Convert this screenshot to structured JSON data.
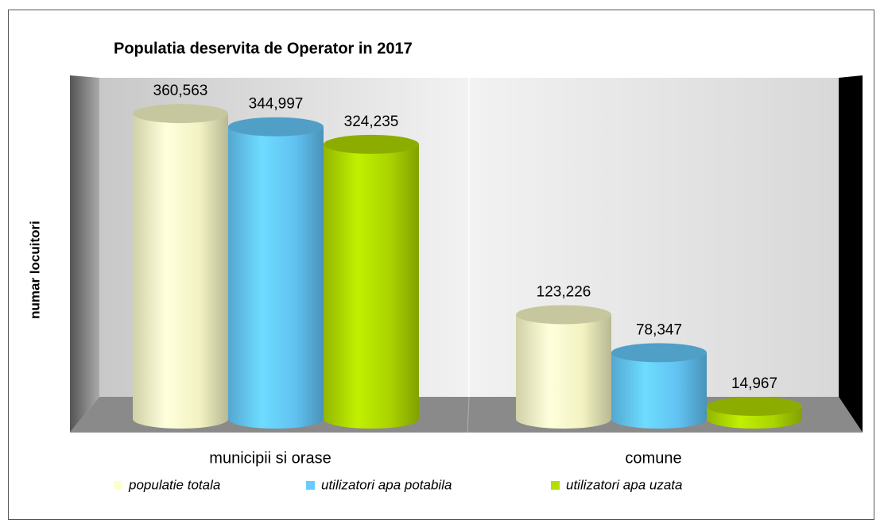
{
  "chart_data": {
    "type": "bar3d",
    "title": "Populatia deservita de Operator in 2017",
    "y_label": "numar locuitori",
    "categories": [
      "municipii si orase",
      "comune"
    ],
    "series": [
      {
        "name": "populatie totala",
        "color": "#ffffcc",
        "values": [
          360563,
          123226
        ],
        "value_labels": [
          "360,563",
          "123,226"
        ]
      },
      {
        "name": "utilizatori apa potabila",
        "color": "#66ccff",
        "values": [
          344997,
          78347
        ],
        "value_labels": [
          "344,997",
          "78,347"
        ]
      },
      {
        "name": "utilizatori apa uzata",
        "color": "#b3de00",
        "values": [
          324235,
          14967
        ],
        "value_labels": [
          "324,235",
          "14,967"
        ]
      }
    ],
    "ylim": [
      0,
      400000
    ],
    "legend": "bottom"
  }
}
